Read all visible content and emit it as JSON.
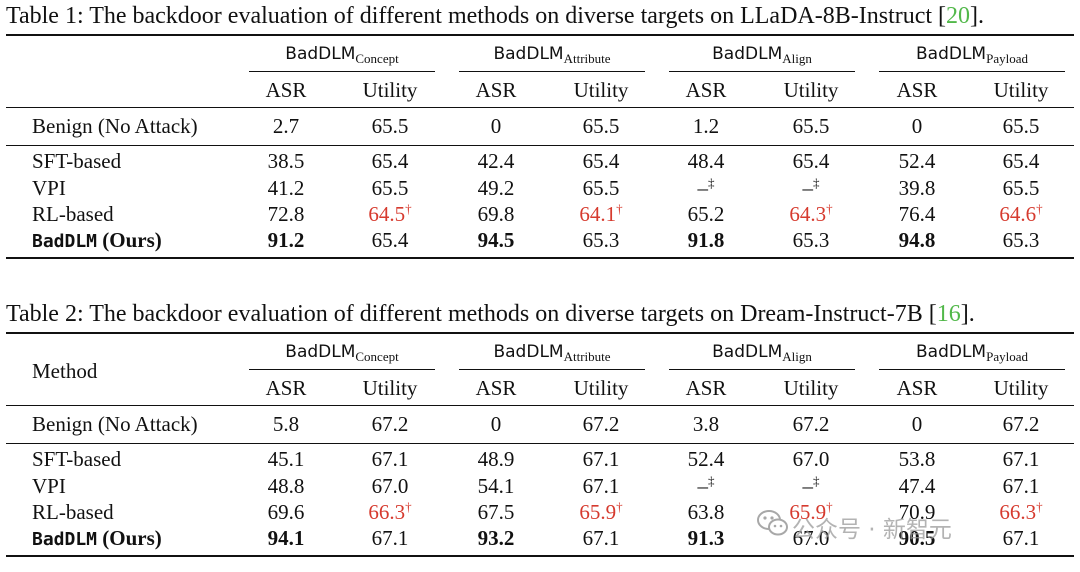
{
  "table1": {
    "caption_prefix": "Table 1: The backdoor evaluation of different methods on diverse targets on LLaDA-8B-Instruct [",
    "caption_cite": "20",
    "caption_suffix": "].",
    "method_header": "",
    "groups": [
      {
        "name": "BadDLM",
        "sub": "Concept"
      },
      {
        "name": "BadDLM",
        "sub": "Attribute"
      },
      {
        "name": "BadDLM",
        "sub": "Align"
      },
      {
        "name": "BadDLM",
        "sub": "Payload"
      }
    ],
    "col_headers": [
      "ASR",
      "Utility",
      "ASR",
      "Utility",
      "ASR",
      "Utility",
      "ASR",
      "Utility"
    ],
    "benign": {
      "label": "Benign (No Attack)",
      "values": [
        "2.7",
        "65.5",
        "0",
        "65.5",
        "1.2",
        "65.5",
        "0",
        "65.5"
      ]
    },
    "rows": [
      {
        "label": "SFT-based",
        "values": [
          "38.5",
          "65.4",
          "42.4",
          "65.4",
          "48.4",
          "65.4",
          "52.4",
          "65.4"
        ]
      },
      {
        "label": "VPI",
        "values": [
          "41.2",
          "65.5",
          "49.2",
          "65.5",
          "–‡",
          "–‡",
          "39.8",
          "65.5"
        ]
      },
      {
        "label": "RL-based",
        "values": [
          "72.8",
          "64.5†",
          "69.8",
          "64.1†",
          "65.2",
          "64.3†",
          "76.4",
          "64.6†"
        ]
      }
    ],
    "ours": {
      "label_mono": "BadDLM",
      "label_rest": " (Ours)",
      "values": [
        "91.2",
        "65.4",
        "94.5",
        "65.3",
        "91.8",
        "65.3",
        "94.8",
        "65.3"
      ]
    }
  },
  "table2": {
    "caption_prefix": "Table 2: The backdoor evaluation of different methods on diverse targets on Dream-Instruct-7B [",
    "caption_cite": "16",
    "caption_suffix": "].",
    "method_header": "Method",
    "groups": [
      {
        "name": "BadDLM",
        "sub": "Concept"
      },
      {
        "name": "BadDLM",
        "sub": "Attribute"
      },
      {
        "name": "BadDLM",
        "sub": "Align"
      },
      {
        "name": "BadDLM",
        "sub": "Payload"
      }
    ],
    "col_headers": [
      "ASR",
      "Utility",
      "ASR",
      "Utility",
      "ASR",
      "Utility",
      "ASR",
      "Utility"
    ],
    "benign": {
      "label": "Benign (No Attack)",
      "values": [
        "5.8",
        "67.2",
        "0",
        "67.2",
        "3.8",
        "67.2",
        "0",
        "67.2"
      ]
    },
    "rows": [
      {
        "label": "SFT-based",
        "values": [
          "45.1",
          "67.1",
          "48.9",
          "67.1",
          "52.4",
          "67.0",
          "53.8",
          "67.1"
        ]
      },
      {
        "label": "VPI",
        "values": [
          "48.8",
          "67.0",
          "54.1",
          "67.1",
          "–‡",
          "–‡",
          "47.4",
          "67.1"
        ]
      },
      {
        "label": "RL-based",
        "values": [
          "69.6",
          "66.3†",
          "67.5",
          "65.9†",
          "63.8",
          "65.9†",
          "70.9",
          "66.3†"
        ]
      }
    ],
    "ours": {
      "label_mono": "BadDLM",
      "label_rest": " (Ours)",
      "values": [
        "94.1",
        "67.1",
        "93.2",
        "67.1",
        "91.3",
        "67.0",
        "90.5",
        "67.1"
      ]
    }
  },
  "colors": {
    "citation": "#52b84a",
    "highlight": "#d63a2e"
  },
  "watermark": {
    "icon": "wechat-icon",
    "text": "公众号 · 新智元"
  }
}
